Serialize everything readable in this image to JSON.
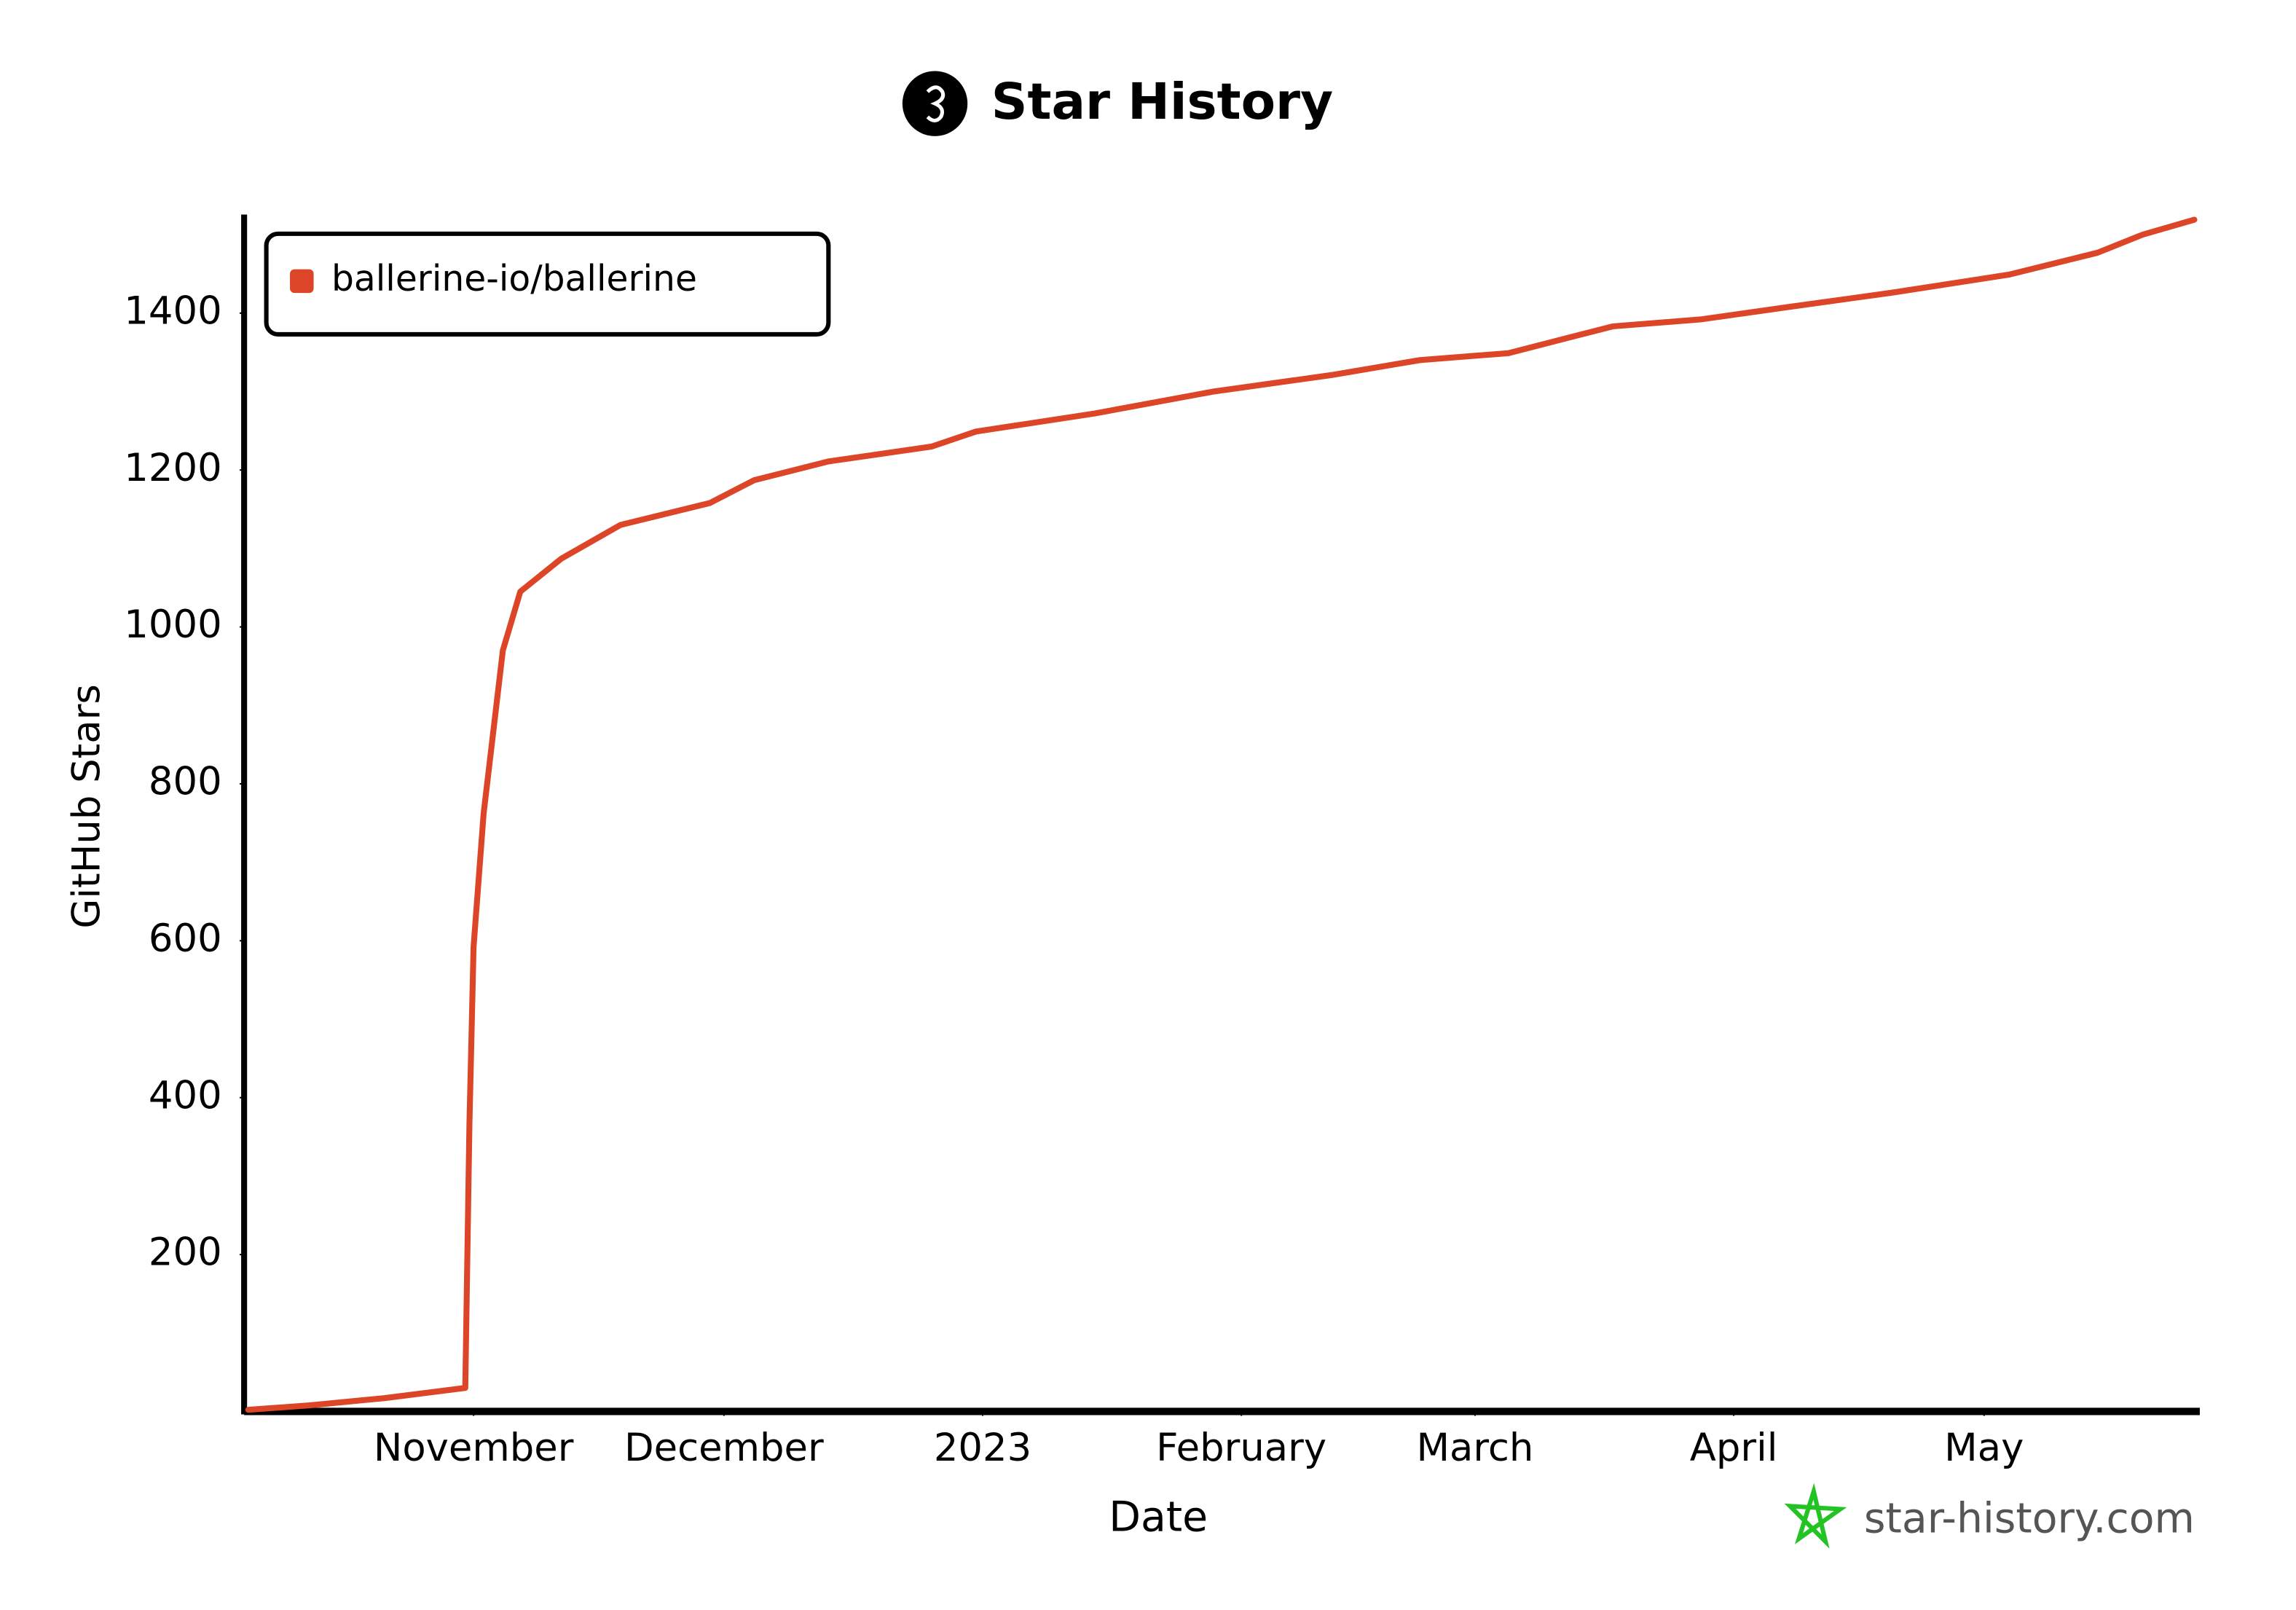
{
  "chart_data": {
    "type": "line",
    "title": "Star History",
    "x_label": "Date",
    "y_label": "GitHub Stars",
    "watermark": "star-history.com",
    "x": [
      4,
      11.5,
      20.3,
      30,
      30.5,
      31,
      32.2,
      34.5,
      36.6,
      41.5,
      48.6,
      59.3,
      64.6,
      73.5,
      85.9,
      91.2,
      105.4,
      119.6,
      133.8,
      144.4,
      155,
      167.5,
      178,
      188.7,
      201,
      215,
      225.6,
      231,
      237.2
    ],
    "series": [
      {
        "name": "ballerine-io/ballerine",
        "color": "#dd4528",
        "values": [
          2,
          8,
          17,
          30,
          366,
          592,
          762,
          970,
          1045,
          1087,
          1130,
          1158,
          1187,
          1211,
          1230,
          1249,
          1272,
          1300,
          1321,
          1340,
          1349,
          1383,
          1392,
          1408,
          1426,
          1449,
          1477,
          1500,
          1519
        ]
      }
    ],
    "xlim": [
      3.5,
      237.5
    ],
    "xticks": [
      {
        "value": 31,
        "label": "November"
      },
      {
        "value": 61,
        "label": "December"
      },
      {
        "value": 92,
        "label": "2023"
      },
      {
        "value": 123,
        "label": "February"
      },
      {
        "value": 151,
        "label": "March"
      },
      {
        "value": 182,
        "label": "April"
      },
      {
        "value": 212,
        "label": "May"
      }
    ],
    "ylim": [
      0,
      1520
    ],
    "yticks": [
      200,
      400,
      600,
      800,
      1000,
      1200,
      1400
    ],
    "grid": false,
    "legend": "top-left"
  }
}
